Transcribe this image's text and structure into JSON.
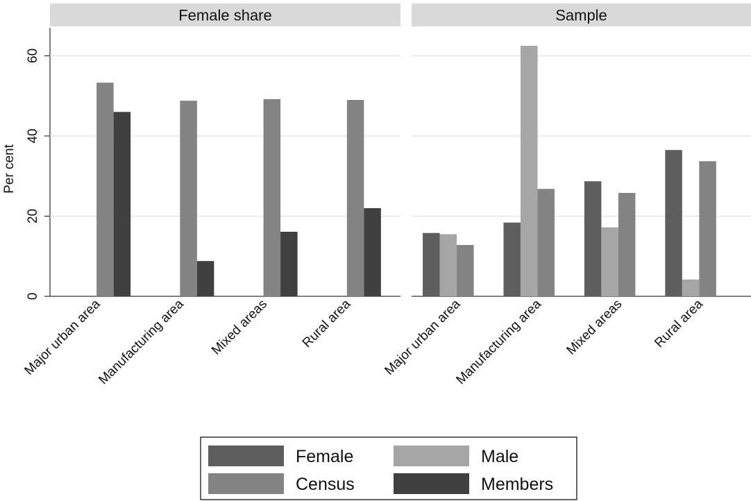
{
  "chart_data": {
    "type": "bar",
    "ylabel": "Per cent",
    "ylim": [
      0,
      67
    ],
    "yticks": [
      0,
      20,
      40,
      60
    ],
    "grid": true,
    "legend_position": "bottom",
    "series_styles": [
      {
        "name": "Female",
        "color": "#5e5e5e"
      },
      {
        "name": "Male",
        "color": "#a6a6a6"
      },
      {
        "name": "Census",
        "color": "#838383"
      },
      {
        "name": "Members",
        "color": "#404040"
      }
    ],
    "panels": [
      {
        "title": "Female share",
        "categories": [
          "Major urban area",
          "Manufacturing area",
          "Mixed areas",
          "Rural area"
        ],
        "series": [
          {
            "name": "Female",
            "values": [
              null,
              null,
              null,
              null
            ]
          },
          {
            "name": "Male",
            "values": [
              null,
              null,
              null,
              null
            ]
          },
          {
            "name": "Census",
            "values": [
              53.3,
              48.8,
              49.2,
              49.0
            ]
          },
          {
            "name": "Members",
            "values": [
              46.0,
              8.8,
              16.1,
              22.0
            ]
          }
        ]
      },
      {
        "title": "Sample",
        "categories": [
          "Major urban area",
          "Manufacturing area",
          "Mixed areas",
          "Rural area"
        ],
        "series": [
          {
            "name": "Female",
            "values": [
              15.8,
              18.4,
              28.7,
              36.5
            ]
          },
          {
            "name": "Male",
            "values": [
              15.5,
              62.5,
              17.2,
              4.2
            ]
          },
          {
            "name": "Census",
            "values": [
              12.8,
              26.8,
              25.8,
              33.7
            ]
          },
          {
            "name": "Members",
            "values": [
              null,
              null,
              null,
              null
            ]
          }
        ]
      }
    ]
  }
}
